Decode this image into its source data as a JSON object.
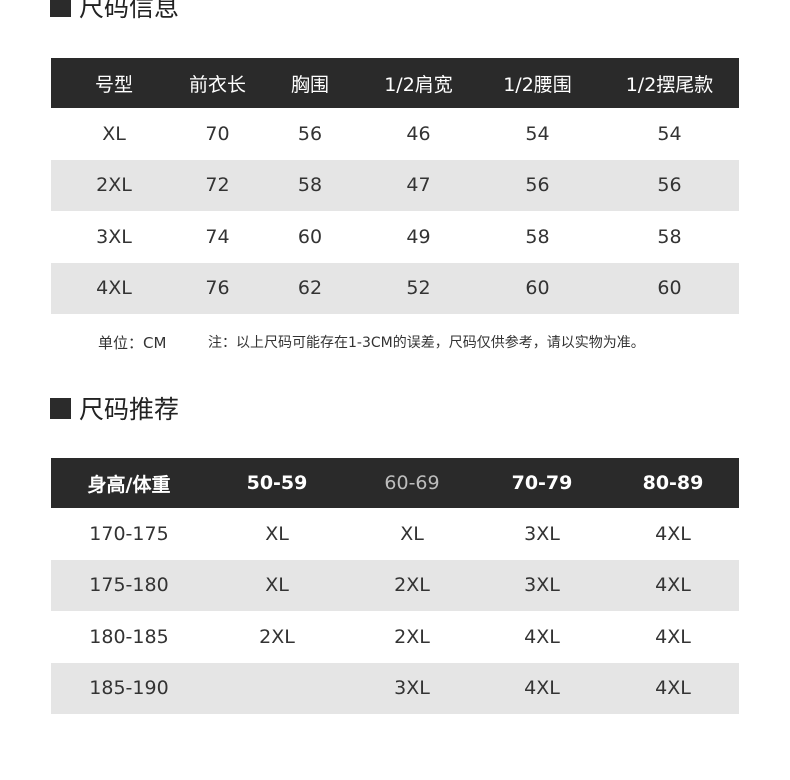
{
  "section1": {
    "title": "尺码信息",
    "headers": [
      "号型",
      "前衣长",
      "胸围",
      "1/2肩宽",
      "1/2腰围",
      "1/2摆尾款"
    ],
    "rows": [
      [
        "XL",
        "70",
        "56",
        "46",
        "54",
        "54"
      ],
      [
        "2XL",
        "72",
        "58",
        "47",
        "56",
        "56"
      ],
      [
        "3XL",
        "74",
        "60",
        "49",
        "58",
        "58"
      ],
      [
        "4XL",
        "76",
        "62",
        "52",
        "60",
        "60"
      ]
    ],
    "unit": "单位：CM",
    "note": "注：以上尺码可能存在1-3CM的误差，尺码仅供参考，请以实物为准。"
  },
  "section2": {
    "title": "尺码推荐",
    "headers": [
      "身高/体重",
      "50-59",
      "60-69",
      "70-79",
      "80-89"
    ],
    "rows": [
      [
        "170-175",
        "XL",
        "XL",
        "3XL",
        "4XL"
      ],
      [
        "175-180",
        "XL",
        "2XL",
        "3XL",
        "4XL"
      ],
      [
        "180-185",
        "2XL",
        "2XL",
        "4XL",
        "4XL"
      ],
      [
        "185-190",
        "",
        "3XL",
        "4XL",
        "4XL"
      ]
    ]
  },
  "colors": {
    "header_bg": "#2a2a2a",
    "stripe": "#e5e5e5",
    "text": "#333333"
  }
}
